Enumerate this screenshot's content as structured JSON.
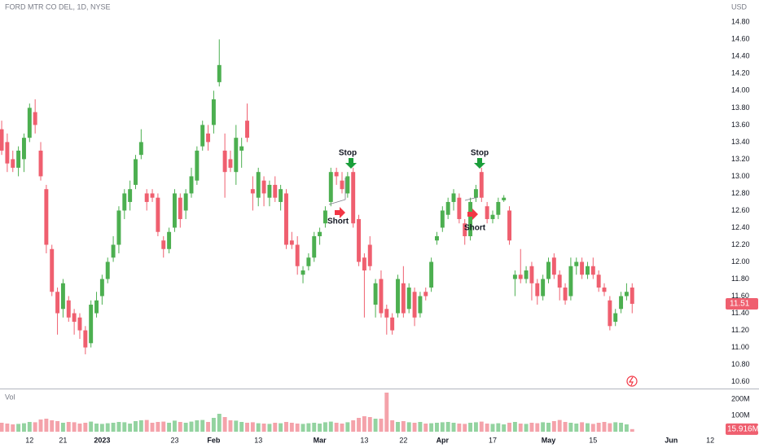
{
  "chart_data": {
    "type": "candlestick",
    "title": "FORD MTR CO DEL, 1D, NYSE",
    "currency": "USD",
    "volume_title": "Vol",
    "up_color": "#4caf50",
    "down_color": "#ef5f6f",
    "volume_up_color": "#93d3a0",
    "volume_down_color": "#f4a2aa",
    "grid": false,
    "annotations": [
      "Stop",
      "Short",
      "Stop",
      "Short"
    ],
    "xlim": [
      -0.3,
      129.6
    ],
    "xticks": [
      {
        "value": 5,
        "label": "12"
      },
      {
        "value": 11,
        "label": "21"
      },
      {
        "value": 18,
        "label": "2023"
      },
      {
        "value": 31,
        "label": "23"
      },
      {
        "value": 38,
        "label": "Feb"
      },
      {
        "value": 46,
        "label": "13"
      },
      {
        "value": 57,
        "label": "Mar"
      },
      {
        "value": 65,
        "label": "13"
      },
      {
        "value": 72,
        "label": "22"
      },
      {
        "value": 79,
        "label": "Apr"
      },
      {
        "value": 88,
        "label": "17"
      },
      {
        "value": 98,
        "label": "May"
      },
      {
        "value": 106,
        "label": "15"
      },
      {
        "value": 120,
        "label": "Jun"
      },
      {
        "value": 127,
        "label": "12"
      }
    ],
    "ylim": [
      10.52,
      15.06
    ],
    "yticks": [
      {
        "value": 14.8,
        "label": "14.80"
      },
      {
        "value": 14.6,
        "label": "14.60"
      },
      {
        "value": 14.4,
        "label": "14.40"
      },
      {
        "value": 14.2,
        "label": "14.20"
      },
      {
        "value": 14.0,
        "label": "14.00"
      },
      {
        "value": 13.8,
        "label": "13.80"
      },
      {
        "value": 13.6,
        "label": "13.60"
      },
      {
        "value": 13.4,
        "label": "13.40"
      },
      {
        "value": 13.2,
        "label": "13.20"
      },
      {
        "value": 13.0,
        "label": "13.00"
      },
      {
        "value": 12.8,
        "label": "12.80"
      },
      {
        "value": 12.6,
        "label": "12.60"
      },
      {
        "value": 12.4,
        "label": "12.40"
      },
      {
        "value": 12.2,
        "label": "12.20"
      },
      {
        "value": 12.0,
        "label": "12.00"
      },
      {
        "value": 11.8,
        "label": "11.80"
      },
      {
        "value": 11.6,
        "label": "11.60"
      },
      {
        "value": 11.4,
        "label": "11.40"
      },
      {
        "value": 11.2,
        "label": "11.20"
      },
      {
        "value": 11.0,
        "label": "11.00"
      },
      {
        "value": 10.8,
        "label": "10.80"
      },
      {
        "value": 10.6,
        "label": "10.60"
      }
    ],
    "y2lim": [
      0,
      260
    ],
    "y2ticks": [
      {
        "value": 200,
        "label": "200M"
      },
      {
        "value": 100,
        "label": "100M"
      }
    ],
    "ohlc": [
      [
        13.55,
        13.65,
        13.25,
        13.3
      ],
      [
        13.4,
        13.5,
        13.05,
        13.15
      ],
      [
        13.2,
        13.3,
        13.05,
        13.1
      ],
      [
        13.1,
        13.35,
        13.0,
        13.3
      ],
      [
        13.2,
        13.5,
        13.05,
        13.45
      ],
      [
        13.45,
        13.85,
        13.4,
        13.8
      ],
      [
        13.75,
        13.9,
        13.5,
        13.6
      ],
      [
        13.3,
        13.4,
        12.95,
        13.0
      ],
      [
        12.85,
        12.9,
        12.1,
        12.2
      ],
      [
        12.15,
        12.2,
        11.6,
        11.65
      ],
      [
        11.65,
        11.7,
        11.15,
        11.4
      ],
      [
        11.45,
        11.8,
        11.35,
        11.75
      ],
      [
        11.55,
        11.6,
        11.3,
        11.35
      ],
      [
        11.4,
        11.45,
        11.15,
        11.3
      ],
      [
        11.35,
        11.4,
        11.1,
        11.2
      ],
      [
        11.2,
        11.25,
        10.92,
        11.0
      ],
      [
        11.05,
        11.55,
        11.0,
        11.5
      ],
      [
        11.4,
        11.65,
        11.35,
        11.55
      ],
      [
        11.6,
        11.85,
        11.5,
        11.8
      ],
      [
        11.8,
        12.05,
        11.75,
        12.0
      ],
      [
        12.05,
        12.3,
        12.0,
        12.2
      ],
      [
        12.2,
        12.65,
        12.1,
        12.6
      ],
      [
        12.6,
        12.85,
        12.5,
        12.8
      ],
      [
        12.7,
        12.95,
        12.6,
        12.85
      ],
      [
        12.9,
        13.25,
        12.85,
        13.2
      ],
      [
        13.25,
        13.55,
        13.2,
        13.4
      ],
      [
        12.8,
        12.85,
        12.6,
        12.7
      ],
      [
        12.8,
        12.85,
        12.7,
        12.75
      ],
      [
        12.75,
        12.8,
        12.3,
        12.35
      ],
      [
        12.25,
        12.3,
        12.05,
        12.15
      ],
      [
        12.15,
        12.4,
        12.1,
        12.35
      ],
      [
        12.4,
        12.85,
        12.35,
        12.8
      ],
      [
        12.75,
        12.8,
        12.4,
        12.5
      ],
      [
        12.6,
        12.85,
        12.5,
        12.8
      ],
      [
        12.8,
        13.1,
        12.75,
        13.0
      ],
      [
        12.95,
        13.35,
        12.9,
        13.3
      ],
      [
        13.35,
        13.65,
        13.3,
        13.6
      ],
      [
        13.5,
        13.6,
        13.3,
        13.4
      ],
      [
        13.6,
        14.0,
        13.5,
        13.9
      ],
      [
        14.1,
        14.6,
        14.05,
        14.3
      ],
      [
        13.3,
        13.5,
        12.75,
        13.05
      ],
      [
        13.2,
        13.3,
        13.05,
        13.1
      ],
      [
        13.05,
        13.6,
        12.9,
        13.45
      ],
      [
        13.3,
        13.45,
        13.1,
        13.35
      ],
      [
        13.65,
        13.85,
        13.4,
        13.45
      ],
      [
        12.85,
        13.0,
        12.6,
        12.8
      ],
      [
        12.75,
        13.1,
        12.65,
        13.05
      ],
      [
        12.95,
        13.0,
        12.65,
        12.8
      ],
      [
        12.75,
        12.95,
        12.65,
        12.9
      ],
      [
        12.9,
        13.0,
        12.7,
        12.75
      ],
      [
        12.7,
        12.9,
        12.6,
        12.85
      ],
      [
        12.8,
        12.85,
        12.15,
        12.2
      ],
      [
        12.25,
        12.35,
        12.15,
        12.2
      ],
      [
        12.2,
        12.3,
        11.85,
        11.95
      ],
      [
        11.85,
        11.95,
        11.75,
        11.9
      ],
      [
        11.95,
        12.1,
        11.9,
        12.05
      ],
      [
        12.05,
        12.35,
        12.0,
        12.3
      ],
      [
        12.3,
        12.4,
        12.2,
        12.35
      ],
      [
        12.45,
        12.65,
        12.4,
        12.6
      ],
      [
        12.7,
        13.1,
        12.65,
        13.05
      ],
      [
        13.05,
        13.1,
        12.9,
        13.0
      ],
      [
        12.95,
        13.05,
        12.8,
        12.85
      ],
      [
        12.8,
        13.05,
        12.75,
        13.0
      ],
      [
        13.05,
        13.1,
        12.4,
        12.45
      ],
      [
        12.5,
        12.55,
        11.95,
        12.0
      ],
      [
        12.05,
        12.1,
        11.35,
        11.9
      ],
      [
        12.2,
        12.3,
        11.9,
        11.95
      ],
      [
        11.5,
        11.8,
        11.35,
        11.75
      ],
      [
        11.8,
        11.9,
        11.35,
        11.4
      ],
      [
        11.45,
        11.5,
        11.15,
        11.35
      ],
      [
        11.35,
        11.4,
        11.15,
        11.2
      ],
      [
        11.4,
        11.85,
        11.35,
        11.8
      ],
      [
        11.75,
        11.95,
        11.35,
        11.4
      ],
      [
        11.45,
        11.75,
        11.4,
        11.7
      ],
      [
        11.65,
        11.7,
        11.25,
        11.35
      ],
      [
        11.4,
        11.65,
        11.35,
        11.6
      ],
      [
        11.65,
        11.7,
        11.55,
        11.6
      ],
      [
        11.7,
        12.05,
        11.65,
        12.0
      ],
      [
        12.25,
        12.35,
        12.2,
        12.3
      ],
      [
        12.4,
        12.65,
        12.35,
        12.6
      ],
      [
        12.55,
        12.75,
        12.5,
        12.7
      ],
      [
        12.7,
        12.85,
        12.6,
        12.8
      ],
      [
        12.75,
        12.8,
        12.45,
        12.5
      ],
      [
        12.45,
        12.5,
        12.2,
        12.3
      ],
      [
        12.3,
        12.75,
        12.25,
        12.7
      ],
      [
        12.75,
        12.9,
        12.7,
        12.85
      ],
      [
        13.05,
        13.1,
        12.7,
        12.75
      ],
      [
        12.65,
        12.7,
        12.45,
        12.5
      ],
      [
        12.5,
        12.6,
        12.45,
        12.55
      ],
      [
        12.55,
        12.75,
        12.5,
        12.7
      ],
      [
        12.72,
        12.78,
        12.7,
        12.75
      ],
      [
        12.6,
        12.65,
        12.2,
        12.25
      ],
      [
        11.8,
        11.9,
        11.6,
        11.85
      ],
      [
        11.85,
        12.15,
        11.75,
        11.8
      ],
      [
        11.8,
        11.95,
        11.75,
        11.9
      ],
      [
        11.95,
        12.0,
        11.55,
        11.75
      ],
      [
        11.75,
        11.8,
        11.5,
        11.6
      ],
      [
        11.6,
        11.85,
        11.55,
        11.8
      ],
      [
        11.8,
        12.05,
        11.75,
        12.0
      ],
      [
        12.05,
        12.1,
        11.8,
        11.85
      ],
      [
        11.85,
        11.9,
        11.55,
        11.7
      ],
      [
        11.7,
        11.75,
        11.5,
        11.55
      ],
      [
        11.6,
        12.05,
        11.55,
        11.95
      ],
      [
        11.95,
        12.05,
        11.85,
        12.0
      ],
      [
        12.0,
        12.05,
        11.8,
        11.85
      ],
      [
        11.85,
        12.0,
        11.8,
        11.95
      ],
      [
        11.95,
        12.05,
        11.8,
        11.85
      ],
      [
        11.85,
        11.9,
        11.65,
        11.7
      ],
      [
        11.7,
        11.75,
        11.6,
        11.65
      ],
      [
        11.55,
        11.6,
        11.2,
        11.25
      ],
      [
        11.3,
        11.45,
        11.25,
        11.4
      ],
      [
        11.45,
        11.65,
        11.4,
        11.6
      ],
      [
        11.6,
        11.75,
        11.55,
        11.65
      ],
      [
        11.7,
        11.75,
        11.4,
        11.51
      ]
    ],
    "volume": [
      55,
      50,
      45,
      48,
      52,
      60,
      58,
      75,
      80,
      70,
      65,
      55,
      60,
      58,
      50,
      55,
      62,
      50,
      48,
      52,
      55,
      60,
      58,
      50,
      65,
      70,
      72,
      55,
      60,
      62,
      55,
      68,
      60,
      55,
      62,
      70,
      72,
      60,
      85,
      110,
      90,
      70,
      68,
      60,
      55,
      58,
      52,
      50,
      48,
      55,
      52,
      60,
      55,
      50,
      48,
      52,
      55,
      50,
      58,
      62,
      55,
      50,
      58,
      70,
      85,
      95,
      90,
      80,
      80,
      240,
      70,
      60,
      65,
      58,
      55,
      60,
      50,
      52,
      55,
      58,
      60,
      55,
      50,
      48,
      55,
      58,
      62,
      50,
      48,
      52,
      45,
      55,
      60,
      50,
      48,
      55,
      52,
      58,
      55,
      65,
      72,
      60,
      55,
      50,
      58,
      52,
      48,
      55,
      60,
      52,
      58,
      55,
      45,
      15.916
    ],
    "volume_last_label": "15.916M"
  }
}
